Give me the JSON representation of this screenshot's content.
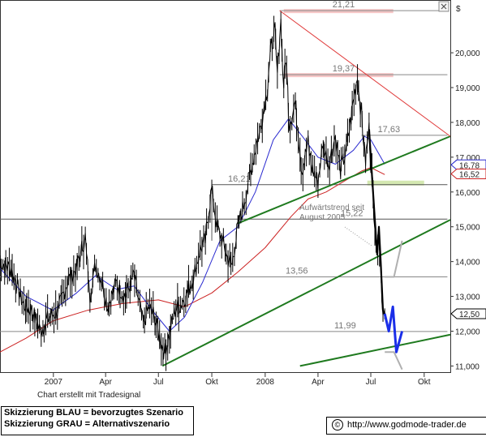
{
  "chart_data": {
    "type": "line",
    "currency_label": "$",
    "ylim": [
      10.8,
      21.4
    ],
    "y_ticks": [
      11,
      12,
      13,
      14,
      15,
      16,
      17,
      18,
      19,
      20
    ],
    "y_tick_labels": [
      "11,000",
      "12,000",
      "13,000",
      "14,000",
      "15,000",
      "16,000",
      "17,000",
      "18,000",
      "19,000",
      "20,000"
    ],
    "x_range": [
      "2006-10-01",
      "2008-11-15"
    ],
    "x_ticks": [
      {
        "date": "2007-01-01",
        "label": "2007"
      },
      {
        "date": "2007-04-01",
        "label": "Apr"
      },
      {
        "date": "2007-07-01",
        "label": "Jul"
      },
      {
        "date": "2007-10-01",
        "label": "Okt"
      },
      {
        "date": "2008-01-01",
        "label": "2008"
      },
      {
        "date": "2008-04-01",
        "label": "Apr"
      },
      {
        "date": "2008-07-01",
        "label": "Jul"
      },
      {
        "date": "2008-10-01",
        "label": "Okt"
      }
    ],
    "price_series": [
      [
        "2006-10-01",
        14.0
      ],
      [
        "2006-10-20",
        13.8
      ],
      [
        "2006-11-10",
        12.8
      ],
      [
        "2006-11-25",
        12.6
      ],
      [
        "2006-12-10",
        12.0
      ],
      [
        "2006-12-25",
        12.4
      ],
      [
        "2007-01-10",
        12.6
      ],
      [
        "2007-01-25",
        13.4
      ],
      [
        "2007-02-10",
        13.8
      ],
      [
        "2007-02-25",
        14.7
      ],
      [
        "2007-03-05",
        13.0
      ],
      [
        "2007-03-15",
        13.9
      ],
      [
        "2007-03-25",
        13.5
      ],
      [
        "2007-04-05",
        12.7
      ],
      [
        "2007-04-20",
        13.4
      ],
      [
        "2007-05-05",
        13.0
      ],
      [
        "2007-05-20",
        13.6
      ],
      [
        "2007-06-05",
        12.2
      ],
      [
        "2007-06-15",
        12.7
      ],
      [
        "2007-06-25",
        12.4
      ],
      [
        "2007-07-05",
        11.7
      ],
      [
        "2007-07-12",
        11.4
      ],
      [
        "2007-07-20",
        11.9
      ],
      [
        "2007-07-30",
        12.6
      ],
      [
        "2007-08-10",
        12.8
      ],
      [
        "2007-08-20",
        13.1
      ],
      [
        "2007-09-01",
        13.6
      ],
      [
        "2007-09-10",
        14.3
      ],
      [
        "2007-09-20",
        14.6
      ],
      [
        "2007-10-01",
        16.1
      ],
      [
        "2007-10-10",
        15.0
      ],
      [
        "2007-10-20",
        14.6
      ],
      [
        "2007-10-28",
        14.1
      ],
      [
        "2007-11-05",
        13.9
      ],
      [
        "2007-11-15",
        15.0
      ],
      [
        "2007-11-25",
        15.6
      ],
      [
        "2007-12-05",
        16.4
      ],
      [
        "2007-12-15",
        17.2
      ],
      [
        "2007-12-25",
        17.9
      ],
      [
        "2008-01-05",
        19.0
      ],
      [
        "2008-01-12",
        20.2
      ],
      [
        "2008-01-18",
        20.6
      ],
      [
        "2008-01-22",
        19.4
      ],
      [
        "2008-01-28",
        20.9
      ],
      [
        "2008-02-02",
        19.1
      ],
      [
        "2008-02-06",
        19.9
      ],
      [
        "2008-02-12",
        17.9
      ],
      [
        "2008-02-22",
        18.6
      ],
      [
        "2008-03-05",
        16.6
      ],
      [
        "2008-03-15",
        17.4
      ],
      [
        "2008-03-22",
        16.7
      ],
      [
        "2008-04-01",
        16.3
      ],
      [
        "2008-04-10",
        17.4
      ],
      [
        "2008-04-20",
        16.8
      ],
      [
        "2008-05-01",
        17.6
      ],
      [
        "2008-05-10",
        16.6
      ],
      [
        "2008-05-20",
        17.2
      ],
      [
        "2008-06-01",
        18.6
      ],
      [
        "2008-06-08",
        19.3
      ],
      [
        "2008-06-15",
        18.3
      ],
      [
        "2008-06-22",
        16.9
      ],
      [
        "2008-06-28",
        17.8
      ],
      [
        "2008-07-03",
        16.5
      ],
      [
        "2008-07-08",
        15.2
      ],
      [
        "2008-07-12",
        14.2
      ],
      [
        "2008-07-15",
        15.0
      ],
      [
        "2008-07-18",
        14.0
      ],
      [
        "2008-07-22",
        12.6
      ],
      [
        "2008-07-25",
        12.5
      ]
    ],
    "sma_blue": [
      [
        "2006-10-01",
        13.8
      ],
      [
        "2006-11-15",
        13.0
      ],
      [
        "2006-12-31",
        12.6
      ],
      [
        "2007-02-10",
        13.1
      ],
      [
        "2007-03-15",
        13.6
      ],
      [
        "2007-04-20",
        13.2
      ],
      [
        "2007-05-20",
        13.3
      ],
      [
        "2007-06-25",
        12.5
      ],
      [
        "2007-07-20",
        12.0
      ],
      [
        "2007-08-15",
        12.4
      ],
      [
        "2007-09-15",
        13.4
      ],
      [
        "2007-10-15",
        14.6
      ],
      [
        "2007-11-15",
        15.0
      ],
      [
        "2007-12-15",
        16.0
      ],
      [
        "2008-01-15",
        17.5
      ],
      [
        "2008-02-10",
        18.1
      ],
      [
        "2008-03-05",
        17.6
      ],
      [
        "2008-04-01",
        17.0
      ],
      [
        "2008-05-01",
        16.8
      ],
      [
        "2008-06-01",
        17.2
      ],
      [
        "2008-06-20",
        17.6
      ],
      [
        "2008-07-01",
        17.5
      ],
      [
        "2008-07-25",
        16.8
      ]
    ],
    "sma_red": [
      [
        "2006-10-01",
        11.4
      ],
      [
        "2006-11-15",
        11.8
      ],
      [
        "2007-01-01",
        12.3
      ],
      [
        "2007-03-01",
        12.6
      ],
      [
        "2007-05-01",
        12.8
      ],
      [
        "2007-07-01",
        12.9
      ],
      [
        "2007-08-15",
        12.7
      ],
      [
        "2007-10-01",
        13.1
      ],
      [
        "2007-11-15",
        13.7
      ],
      [
        "2008-01-01",
        14.4
      ],
      [
        "2008-02-15",
        15.3
      ],
      [
        "2008-03-15",
        15.8
      ],
      [
        "2008-04-15",
        16.0
      ],
      [
        "2008-05-15",
        16.3
      ],
      [
        "2008-06-15",
        16.6
      ],
      [
        "2008-07-01",
        16.7
      ],
      [
        "2008-07-25",
        16.5
      ]
    ],
    "levels": [
      {
        "value": 21.21,
        "label": "21,21",
        "from": "2008-01-26",
        "to": "2008-11-10"
      },
      {
        "value": 19.37,
        "label": "19,37",
        "from": "2008-01-26",
        "to": "2008-11-10"
      },
      {
        "value": 17.63,
        "label": "17,63",
        "from": "2008-06-15",
        "to": "2008-11-10"
      },
      {
        "value": 16.21,
        "label": "16,21",
        "from": "2007-10-01",
        "to": "2008-11-10"
      },
      {
        "value": 15.22,
        "label": "15,22",
        "from": "2006-10-01",
        "to": "2008-11-10"
      },
      {
        "value": 13.56,
        "label": "13,56",
        "from": "2006-10-01",
        "to": "2008-11-10"
      },
      {
        "value": 11.99,
        "label": "11,99",
        "from": "2006-10-01",
        "to": "2008-11-10"
      }
    ],
    "right_markers": [
      {
        "value": 16.78,
        "label": "16,78",
        "color": "#2b2bd0"
      },
      {
        "value": 16.52,
        "label": "16,52",
        "color": "#cc2222"
      },
      {
        "value": 12.5,
        "label": "12,50",
        "color": "#000000"
      }
    ],
    "trendlines_green": [
      {
        "from": [
          "2007-07-08",
          11.0
        ],
        "to": [
          "2008-11-15",
          15.2
        ]
      },
      {
        "from": [
          "2007-11-15",
          15.1
        ],
        "to": [
          "2008-11-15",
          17.6
        ]
      },
      {
        "from": [
          "2008-03-01",
          11.0
        ],
        "to": [
          "2008-11-15",
          11.9
        ]
      }
    ],
    "trendline_red": {
      "from": [
        "2008-01-26",
        21.21
      ],
      "to": [
        "2008-11-15",
        17.6
      ]
    },
    "scenario_blue": [
      [
        "2008-07-25",
        12.5
      ],
      [
        "2008-08-01",
        12.0
      ],
      [
        "2008-08-08",
        12.7
      ],
      [
        "2008-08-14",
        11.4
      ],
      [
        "2008-08-24",
        12.0
      ]
    ],
    "scenario_grey": [
      [
        "2008-07-25",
        13.56
      ],
      [
        "2008-08-10",
        13.56
      ],
      [
        "2008-08-24",
        14.6
      ],
      [
        "2008-07-25",
        11.4
      ],
      [
        "2008-08-10",
        11.4
      ],
      [
        "2008-08-24",
        10.9
      ]
    ],
    "annotation": "Aufwärtstrend seit\nAugust 2005",
    "credit": "Chart erstellt mit Tradesignal"
  },
  "footer": {
    "legend_line1": "Skizzierung BLAU = bevorzugtes Szenario",
    "legend_line2": "Skizzierung GRAU = Alternativszenario",
    "source": "http://www.godmode-trader.de"
  },
  "colors": {
    "price": "#000000",
    "sma_blue": "#2b2bd0",
    "sma_red": "#cc2222",
    "trend_green": "#1f7a1f",
    "trend_red": "#e03a3a",
    "scenario_blue": "#1a2ee8",
    "scenario_grey": "#b0b0b0",
    "level_line": "#888888"
  },
  "icons": [
    "close-icon"
  ]
}
